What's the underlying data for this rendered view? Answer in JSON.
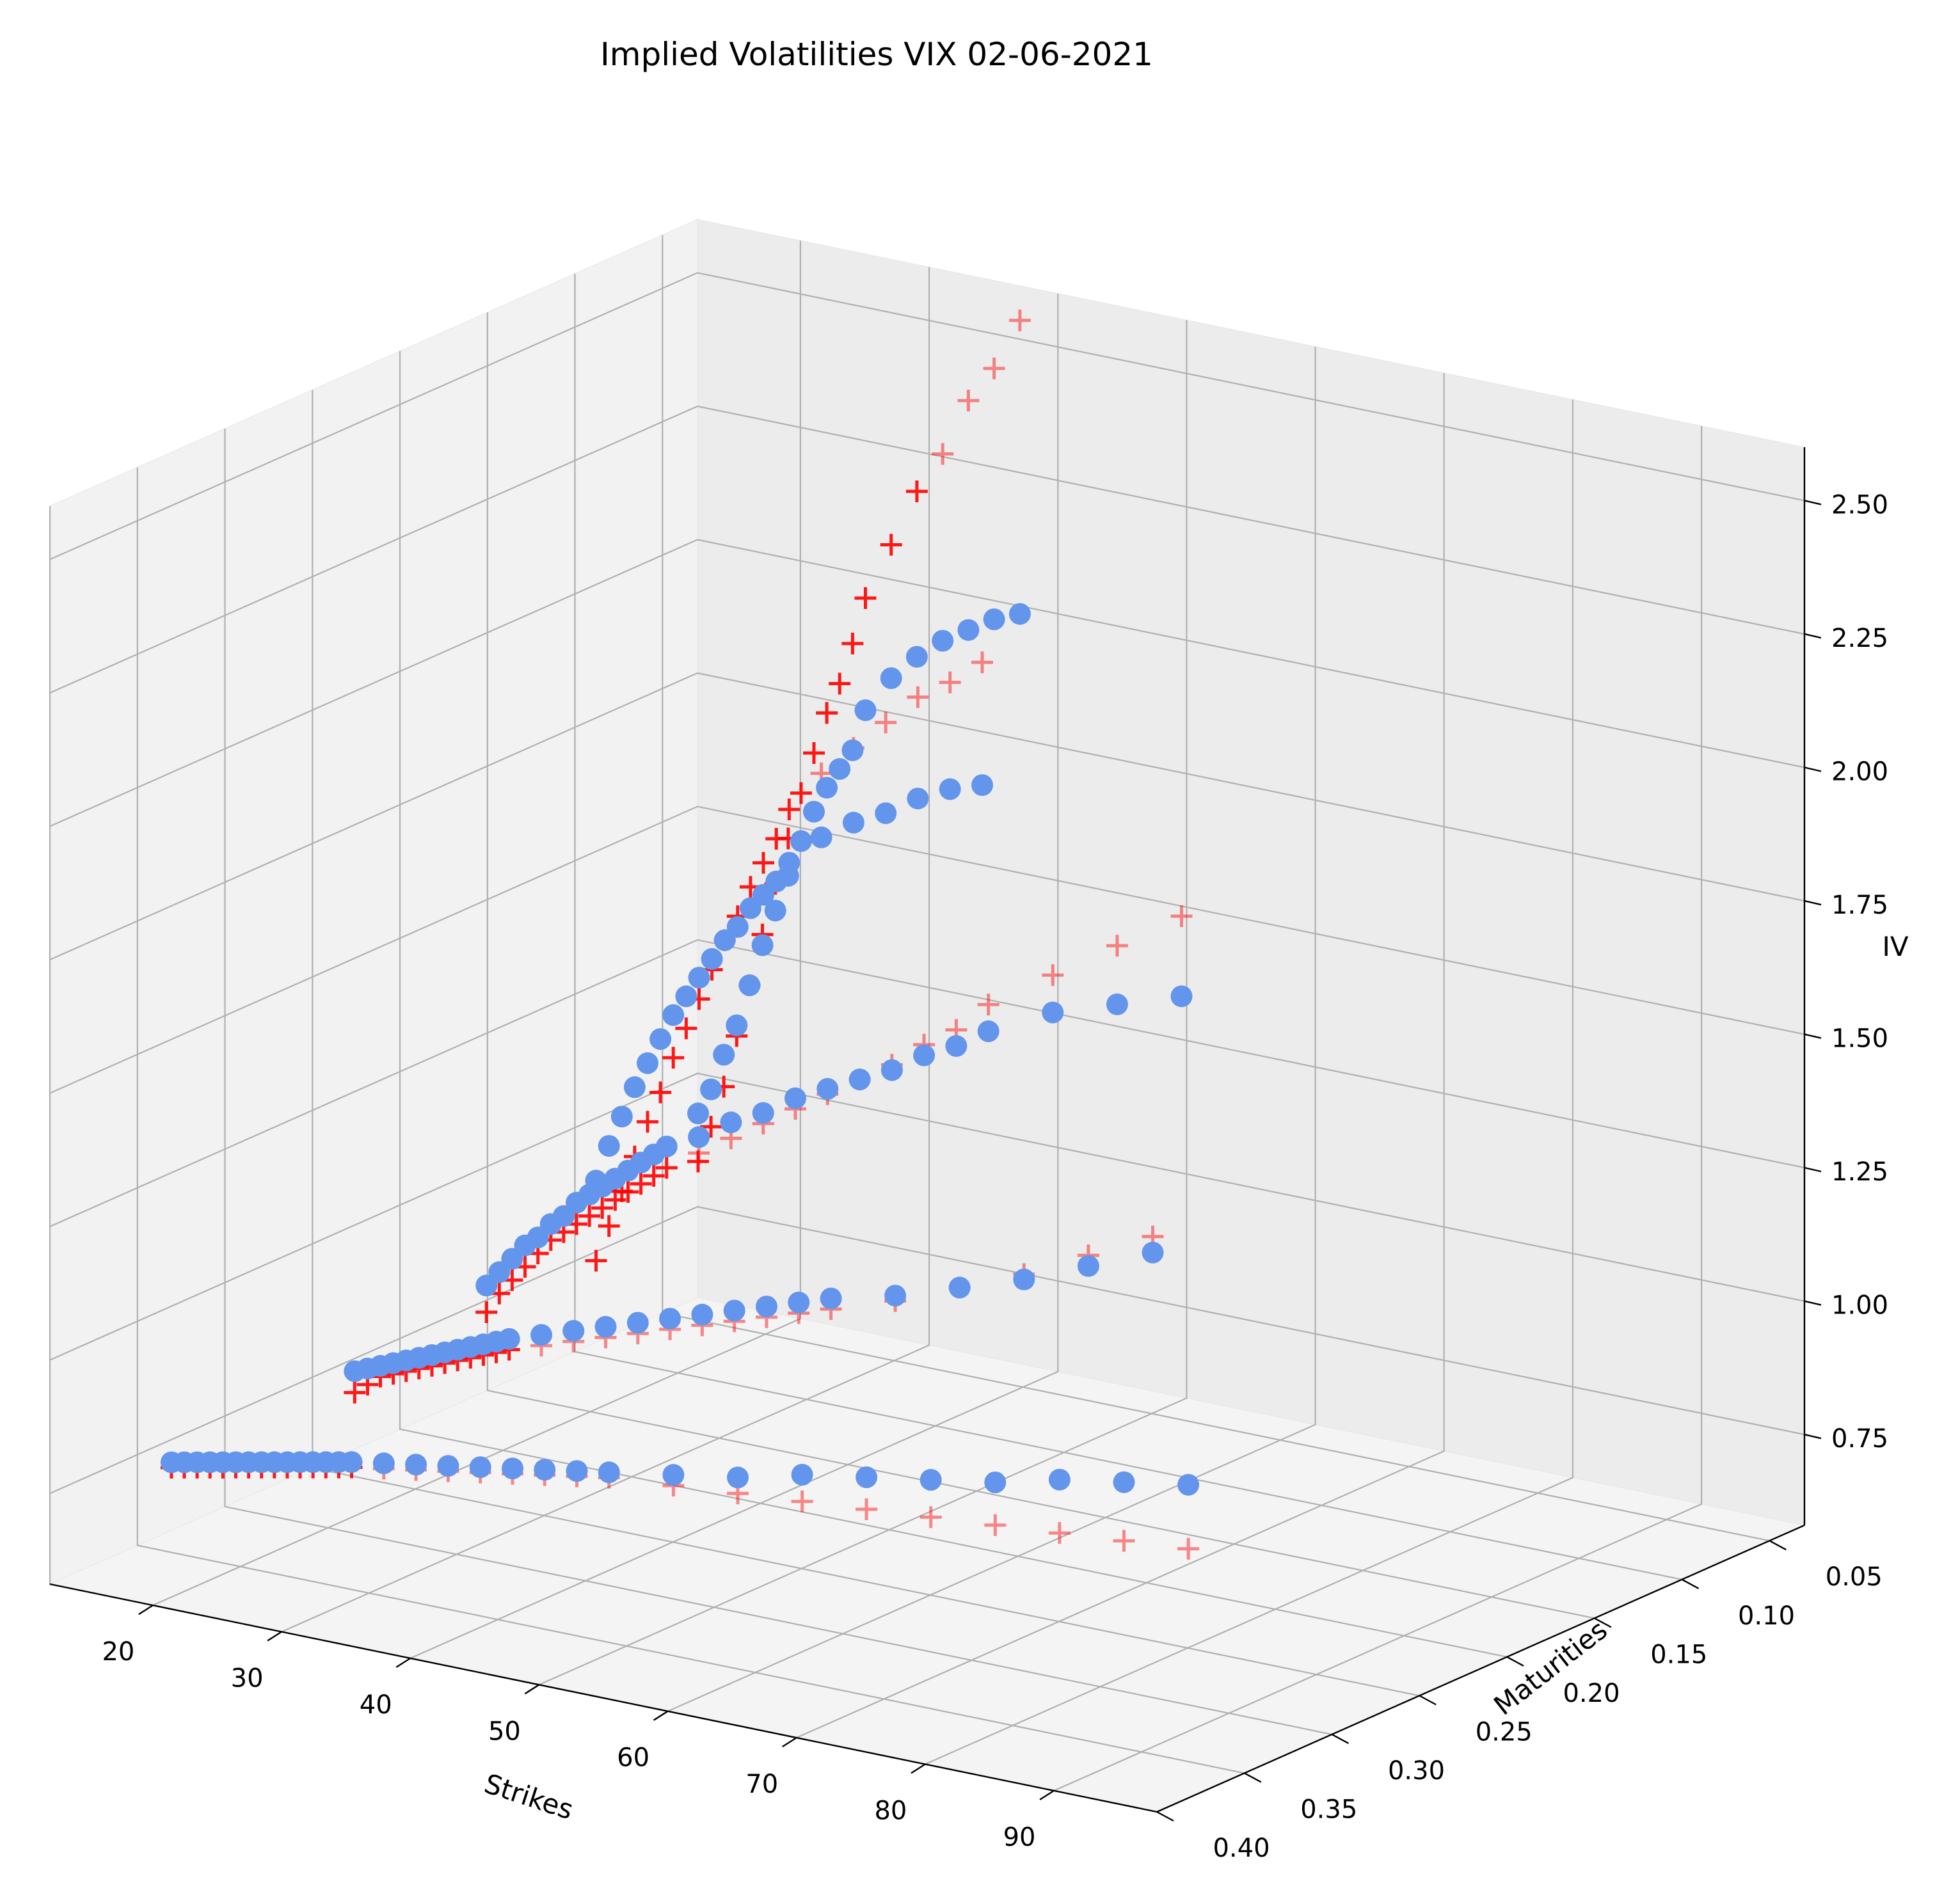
{
  "chart_data": {
    "type": "scatter3d",
    "title": "Implied Volatilities VIX 02-06-2021",
    "xlabel": "Strikes",
    "ylabel": "Maturities",
    "zlabel": "IV",
    "xticks": [
      "90",
      "80",
      "70",
      "60",
      "50",
      "40",
      "30",
      "20"
    ],
    "yticks": [
      "0.05",
      "0.10",
      "0.15",
      "0.20",
      "0.25",
      "0.30",
      "0.35",
      "0.40"
    ],
    "zticks": [
      "0.75",
      "1.00",
      "1.25",
      "1.50",
      "1.75",
      "2.00",
      "2.25",
      "2.50"
    ],
    "xlim": [
      12,
      98
    ],
    "ylim": [
      0.03,
      0.4
    ],
    "zlim": [
      0.58,
      2.6
    ],
    "grid": true,
    "series": [
      {
        "marker": "circle",
        "color": "#6495ed",
        "maturities": [
          {
            "t": 0.037,
            "strikes": [
              38,
              36,
              34,
              32,
              30,
              28,
              26,
              25,
              24,
              23,
              22,
              21,
              20,
              19,
              18,
              17,
              16,
              15,
              14,
              13
            ],
            "iv": [
              2.0,
              1.98,
              1.95,
              1.92,
              1.88,
              1.83,
              1.76,
              1.68,
              1.64,
              1.6,
              1.55,
              1.49,
              1.42,
              1.35,
              1.28,
              1.2,
              1.12,
              1.06,
              0.99,
              0.94
            ]
          },
          {
            "t": 0.11,
            "strikes": [
              45,
              42.5,
              40,
              37.5,
              35,
              32.5,
              30,
              29,
              28,
              27,
              26,
              25,
              24,
              23,
              22,
              21,
              20,
              19,
              18,
              17,
              16,
              15
            ],
            "iv": [
              1.82,
              1.8,
              1.77,
              1.73,
              1.7,
              1.66,
              1.6,
              1.56,
              1.53,
              1.5,
              1.46,
              1.43,
              1.39,
              1.35,
              1.31,
              1.27,
              1.22,
              1.17,
              1.12,
              1.06,
              1.0,
              0.93
            ]
          },
          {
            "t": 0.18,
            "strikes": [
              70,
              65,
              60,
              55,
              52.5,
              50,
              47.5,
              45,
              42.5,
              40,
              37.5,
              35,
              32.5,
              30,
              29,
              28,
              27,
              26,
              25,
              24,
              23,
              22,
              21,
              20,
              19,
              18,
              17,
              16
            ],
            "iv": [
              1.65,
              1.61,
              1.57,
              1.51,
              1.47,
              1.44,
              1.4,
              1.37,
              1.34,
              1.31,
              1.27,
              1.24,
              1.2,
              1.17,
              1.15,
              1.13,
              1.11,
              1.09,
              1.07,
              1.05,
              1.03,
              1.0,
              0.98,
              0.95,
              0.93,
              0.9,
              0.87,
              0.84
            ]
          },
          {
            "t": 0.27,
            "strikes": [
              80,
              75,
              70,
              65,
              60,
              55,
              52.5,
              50,
              47.5,
              45,
              42.5,
              40,
              37.5,
              35,
              32.5,
              30,
              29,
              28,
              27,
              26,
              25,
              24,
              23,
              22,
              21,
              20,
              19,
              18
            ],
            "iv": [
              1.35,
              1.3,
              1.25,
              1.21,
              1.17,
              1.14,
              1.12,
              1.1,
              1.08,
              1.06,
              1.04,
              1.02,
              1.0,
              0.98,
              0.96,
              0.94,
              0.93,
              0.92,
              0.91,
              0.9,
              0.89,
              0.88,
              0.87,
              0.86,
              0.85,
              0.84,
              0.83,
              0.82
            ]
          },
          {
            "t": 0.36,
            "strikes": [
              95,
              90,
              85,
              80,
              75,
              70,
              65,
              60,
              55,
              50,
              47.5,
              45,
              42.5,
              40,
              37.5,
              35,
              32.5,
              30,
              29,
              28,
              27,
              26,
              25,
              24,
              23,
              22,
              21,
              20,
              19,
              18,
              17,
              16
            ],
            "iv": [
              1.12,
              1.1,
              1.08,
              1.05,
              1.03,
              1.01,
              0.99,
              0.96,
              0.94,
              0.92,
              0.91,
              0.9,
              0.89,
              0.88,
              0.87,
              0.86,
              0.85,
              0.84,
              0.835,
              0.83,
              0.825,
              0.82,
              0.815,
              0.81,
              0.805,
              0.8,
              0.795,
              0.79,
              0.785,
              0.78,
              0.775,
              0.77
            ]
          }
        ]
      },
      {
        "marker": "plus",
        "color": "#ff0000",
        "maturities": [
          {
            "t": 0.037,
            "strikes": [
              38,
              36,
              34,
              32,
              30,
              28,
              26,
              25,
              24,
              23,
              22,
              21,
              20,
              19,
              18,
              17,
              16,
              15,
              14,
              13
            ],
            "iv": [
              2.55,
              2.45,
              2.38,
              2.27,
              2.19,
              2.08,
              1.97,
              1.88,
              1.8,
              1.74,
              1.66,
              1.58,
              1.49,
              1.4,
              1.3,
              1.2,
              1.1,
              1.0,
              0.92,
              0.85
            ]
          },
          {
            "t": 0.11,
            "strikes": [
              45,
              42.5,
              40,
              37.5,
              35,
              32.5,
              30,
              29,
              28,
              27,
              26,
              25,
              24,
              23,
              22,
              21,
              20,
              19,
              18,
              17,
              16,
              15
            ],
            "iv": [
              2.05,
              2.0,
              1.96,
              1.9,
              1.84,
              1.78,
              1.7,
              1.64,
              1.59,
              1.54,
              1.48,
              1.43,
              1.37,
              1.31,
              1.25,
              1.19,
              1.12,
              1.06,
              0.99,
              0.92,
              0.85,
              0.78
            ]
          },
          {
            "t": 0.18,
            "strikes": [
              70,
              65,
              60,
              55,
              52.5,
              50,
              47.5,
              45,
              42.5,
              40,
              37.5,
              35,
              32.5,
              30,
              29,
              28,
              27,
              26,
              25,
              24,
              23,
              22,
              21,
              20,
              19,
              18,
              17,
              16
            ],
            "iv": [
              1.8,
              1.72,
              1.64,
              1.56,
              1.5,
              1.46,
              1.41,
              1.37,
              1.33,
              1.29,
              1.25,
              1.21,
              1.17,
              1.13,
              1.11,
              1.09,
              1.07,
              1.05,
              1.03,
              1.01,
              0.99,
              0.97,
              0.95,
              0.92,
              0.89,
              0.86,
              0.83,
              0.79
            ]
          },
          {
            "t": 0.27,
            "strikes": [
              80,
              75,
              70,
              65,
              60,
              55,
              52.5,
              50,
              47.5,
              45,
              42.5,
              40,
              37.5,
              35,
              32.5,
              30,
              29,
              28,
              27,
              26,
              25,
              24,
              23,
              22,
              21,
              20,
              19,
              18
            ],
            "iv": [
              1.38,
              1.32,
              1.26,
              1.21,
              1.16,
              1.12,
              1.1,
              1.08,
              1.06,
              1.04,
              1.02,
              1.0,
              0.98,
              0.96,
              0.94,
              0.92,
              0.91,
              0.9,
              0.89,
              0.88,
              0.87,
              0.86,
              0.85,
              0.84,
              0.83,
              0.82,
              0.8,
              0.78
            ]
          },
          {
            "t": 0.36,
            "strikes": [
              95,
              90,
              85,
              80,
              75,
              70,
              65,
              60,
              55,
              50,
              47.5,
              45,
              42.5,
              40,
              37.5,
              35,
              32.5,
              30,
              29,
              28,
              27,
              26,
              25,
              24,
              23,
              22,
              21,
              20,
              19,
              18,
              17,
              16
            ],
            "iv": [
              1.0,
              0.99,
              0.98,
              0.97,
              0.96,
              0.95,
              0.94,
              0.93,
              0.92,
              0.91,
              0.9,
              0.89,
              0.88,
              0.87,
              0.86,
              0.85,
              0.84,
              0.83,
              0.825,
              0.82,
              0.815,
              0.81,
              0.805,
              0.8,
              0.795,
              0.79,
              0.785,
              0.78,
              0.775,
              0.77,
              0.765,
              0.76
            ]
          }
        ]
      }
    ]
  }
}
